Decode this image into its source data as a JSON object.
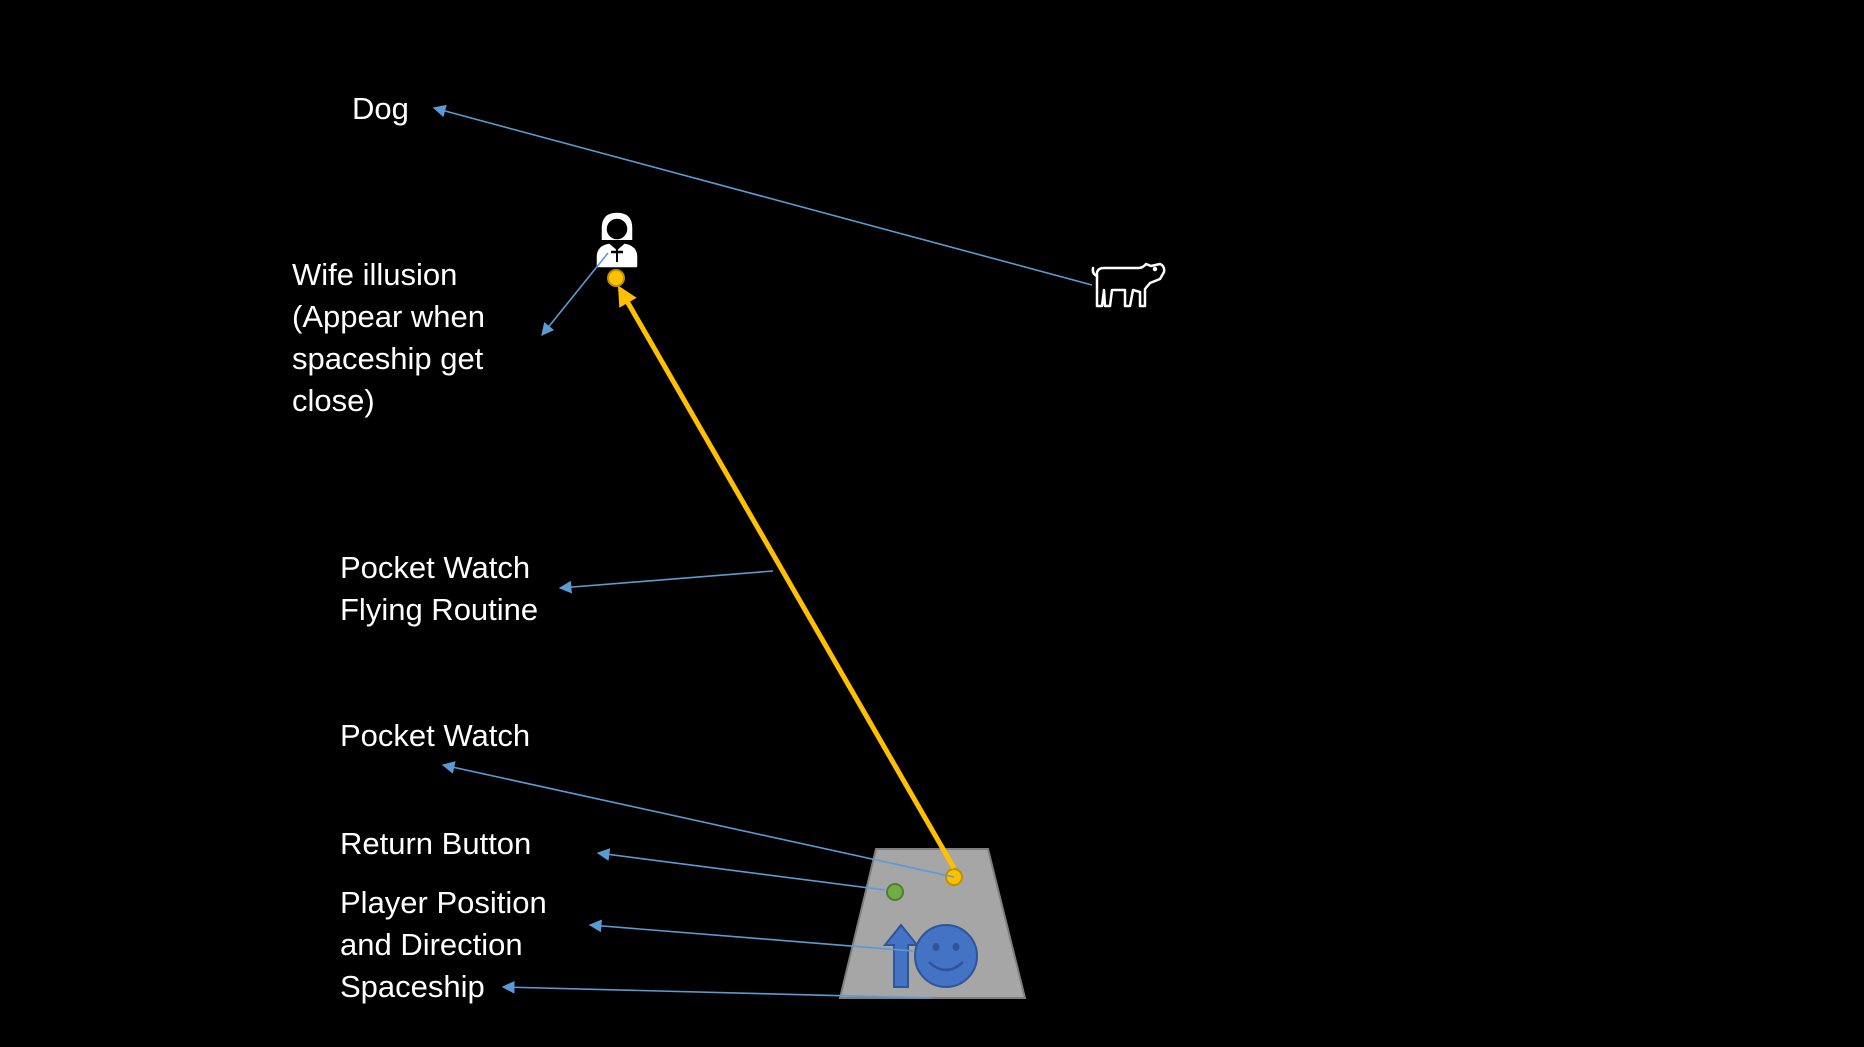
{
  "labels": {
    "dog": "Dog",
    "wife_illusion": "Wife illusion\n(Appear when\nspaceship get\nclose)",
    "flying_routine": "Pocket Watch\nFlying Routine",
    "pocket_watch": "Pocket Watch",
    "return_button": "Return Button",
    "player_position": "Player Position\nand Direction",
    "spaceship": "Spaceship"
  },
  "icons": {
    "dog": "dog-icon",
    "wife": "woman-icon",
    "player": "smiley-face-icon",
    "direction": "up-arrow-icon"
  },
  "colors": {
    "background": "#000000",
    "text": "#ffffff",
    "callout_line": "#5b9bd5",
    "flying_route": "#ffc000",
    "pocket_watch": "#ffc000",
    "return_button": "#70ad47",
    "spaceship_fill": "#a6a6a6",
    "player": "#4472c4"
  }
}
